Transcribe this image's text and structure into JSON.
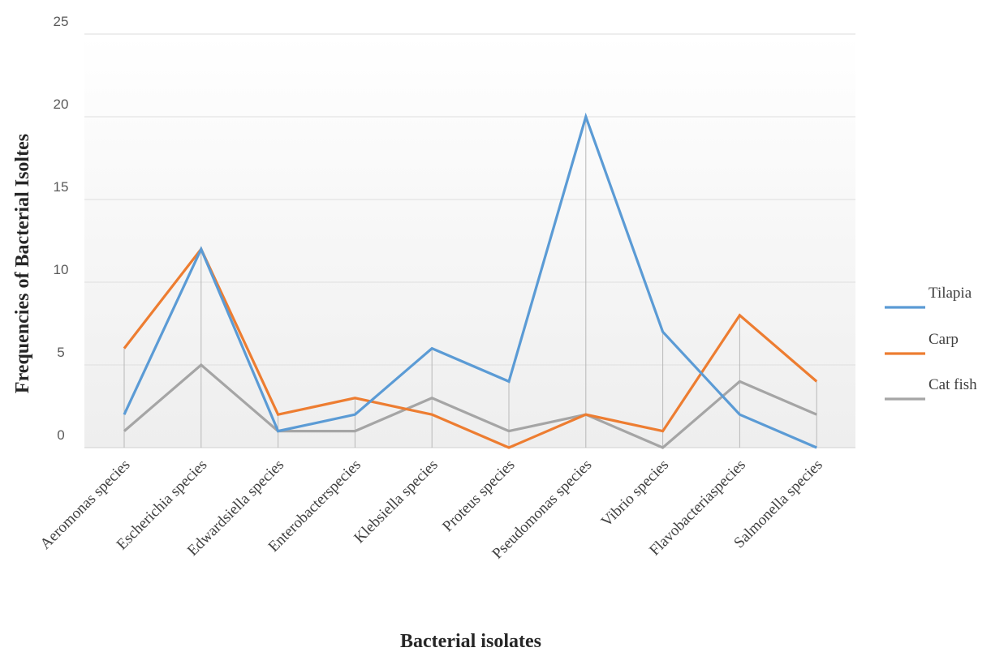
{
  "chart_data": {
    "type": "line",
    "title": "",
    "xlabel": "Bacterial isolates",
    "ylabel": "Frequencies of Bacterial Isoltes",
    "ylim": [
      0,
      25
    ],
    "yticks": [
      "0",
      "5",
      "10",
      "15",
      "20",
      "25"
    ],
    "grid": true,
    "legend_position": "right",
    "categories": [
      "Aeromonas species",
      "Escherichia species",
      "Edwardsiella species",
      "Enterobacterspecies",
      "Klebsiella species",
      "Proteus species",
      "Pseudomonas species",
      "Vibrio species",
      "Flavobacteriaspecies",
      "Salmonella species"
    ],
    "series": [
      {
        "name": "Tilapia",
        "color": "#5B9BD5",
        "values": [
          2,
          12,
          1,
          2,
          6,
          4,
          20,
          7,
          2,
          0
        ]
      },
      {
        "name": "Carp",
        "color": "#ED7D31",
        "values": [
          6,
          12,
          2,
          3,
          2,
          0,
          2,
          1,
          8,
          4
        ]
      },
      {
        "name": "Cat fish",
        "color": "#A5A5A5",
        "values": [
          1,
          5,
          1,
          1,
          3,
          1,
          2,
          0,
          4,
          2
        ]
      }
    ]
  }
}
